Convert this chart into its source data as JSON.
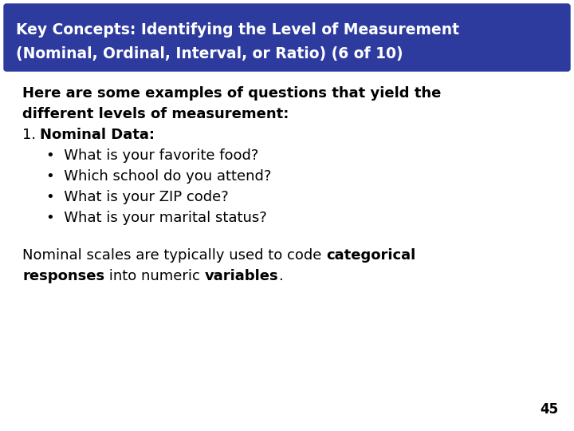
{
  "title_line1": "Key Concepts: Identifying the Level of Measurement",
  "title_line2": "(Nominal, Ordinal, Interval, or Ratio) (6 of 10)",
  "title_bg_color": "#2E3B9E",
  "title_text_color": "#FFFFFF",
  "bg_color": "#FFFFFF",
  "text_color": "#000000",
  "page_number": "45",
  "font_size_title": 13.5,
  "font_size_body": 13,
  "font_size_page": 12
}
